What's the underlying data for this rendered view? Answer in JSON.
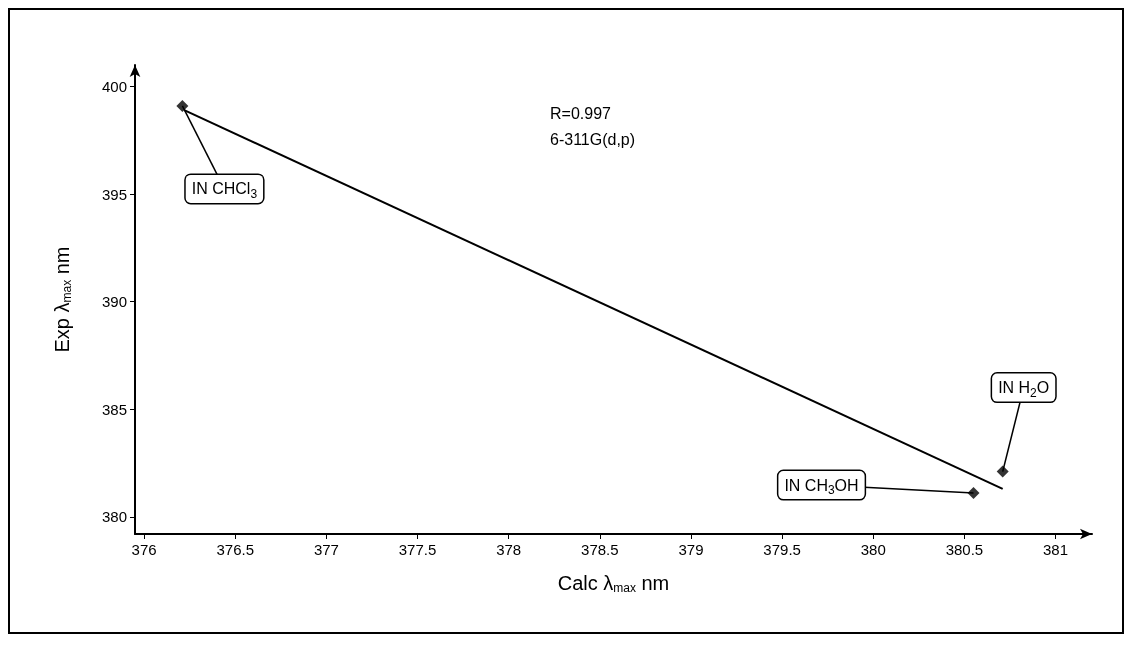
{
  "chart_data": {
    "type": "scatter",
    "xlabel": "Calc λ$_{max}$ nm",
    "ylabel": "Exp λ$_{max}$ nm",
    "xlim": [
      375.95,
      381.2
    ],
    "xticks": [
      376,
      376.5,
      377,
      377.5,
      378,
      378.5,
      379,
      379.5,
      380,
      380.5,
      381
    ],
    "ylim": [
      379.2,
      401
    ],
    "yticks": [
      380,
      385,
      390,
      395,
      400
    ],
    "grid": false,
    "series": [
      {
        "color": "#000000",
        "marker": "diamond",
        "x": [
          376.21,
          380.55,
          380.71
        ],
        "values": [
          399.1,
          381.1,
          382.1
        ]
      },
      {
        "type": "line",
        "color": "#000000",
        "x": [
          376.22,
          380.71
        ],
        "values": [
          398.9,
          381.3
        ]
      }
    ],
    "annotations": [
      {
        "text": "IN CHCl$_{3}$",
        "x": 376.21,
        "y": 399.1
      },
      {
        "text": "IN CH$_{3}$OH",
        "x": 380.55,
        "y": 381.1
      },
      {
        "text": "IN H$_{2}$O",
        "x": 380.71,
        "y": 382.1
      },
      "R=0.997",
      "6-311G(d,p)"
    ]
  }
}
